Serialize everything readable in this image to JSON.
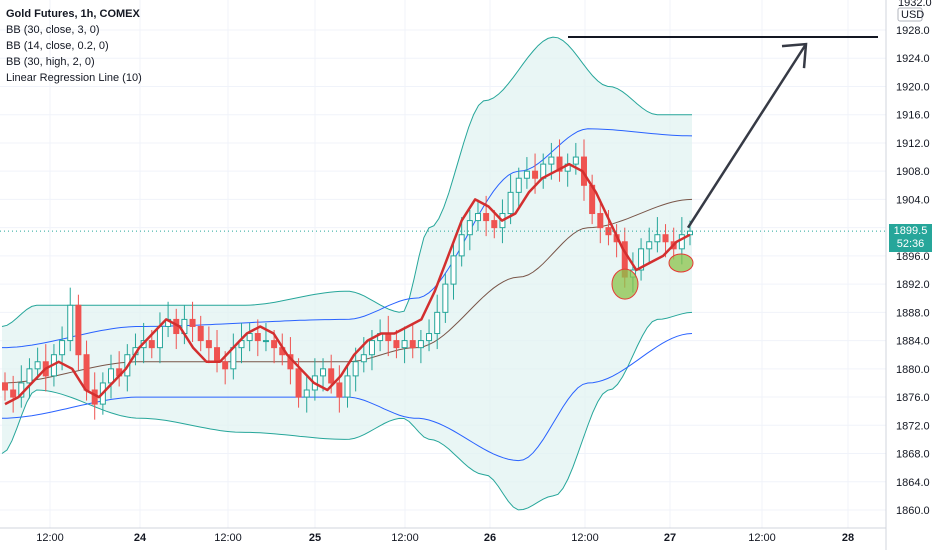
{
  "legend": {
    "title": "Gold Futures, 1h, COMEX",
    "lines": [
      "BB (30, close, 3, 0)",
      "BB (14, close, 0.2, 0)",
      "BB (30, high, 2, 0)",
      "Linear Regression Line (10)"
    ]
  },
  "price_axis": {
    "currency": "USD",
    "top_partial_label": "1932.0",
    "last_price": "1899.5",
    "countdown": "52:36"
  },
  "colors": {
    "up": "#26a69a",
    "down": "#ef5350",
    "regression": "#d32f2f",
    "outer_band": "#26a69a",
    "inner_band": "#2962ff",
    "mid_band": "#795548",
    "fill": "#e0f2f1",
    "highlight": "#8bc34a"
  },
  "chart_data": {
    "type": "candlestick",
    "title": "Gold Futures, 1h, COMEX",
    "ylabel": "USD",
    "ylim": [
      1858,
      1932
    ],
    "y_ticks": [
      1860,
      1864,
      1868,
      1872,
      1876,
      1880,
      1884,
      1888,
      1892,
      1896,
      1900,
      1904,
      1908,
      1912,
      1916,
      1920,
      1924,
      1928
    ],
    "x_ticks": [
      "12:00",
      "24",
      "12:00",
      "25",
      "12:00",
      "26",
      "12:00",
      "27",
      "12:00",
      "28"
    ],
    "x_tick_bold": [
      false,
      true,
      false,
      true,
      false,
      true,
      false,
      true,
      false,
      true
    ],
    "grid": true,
    "candles_close": [
      1877,
      1876,
      1878,
      1880,
      1881,
      1879,
      1882,
      1884,
      1889,
      1882,
      1877,
      1875,
      1878,
      1880,
      1879,
      1882,
      1883,
      1884,
      1883,
      1886,
      1887,
      1885,
      1887,
      1886,
      1884,
      1883,
      1881,
      1880,
      1883,
      1884,
      1885,
      1884,
      1884,
      1883,
      1882,
      1880,
      1876,
      1877,
      1879,
      1880,
      1878,
      1876,
      1879,
      1881,
      1882,
      1884,
      1885,
      1884,
      1883,
      1884,
      1883,
      1884,
      1885,
      1888,
      1892,
      1896,
      1899,
      1901,
      1902,
      1901,
      1900,
      1902,
      1905,
      1907,
      1908,
      1907,
      1909,
      1910,
      1908,
      1909,
      1910,
      1906,
      1902,
      1900,
      1899,
      1898,
      1893,
      1894,
      1897,
      1898,
      1899,
      1898,
      1897,
      1899,
      1899.5
    ],
    "regression_line": [
      1875,
      1876,
      1878,
      1880,
      1881,
      1880,
      1877,
      1876,
      1878,
      1880,
      1883,
      1885,
      1887,
      1886,
      1883,
      1881,
      1881,
      1883,
      1885,
      1886,
      1885,
      1882,
      1880,
      1878,
      1877,
      1879,
      1882,
      1884,
      1885,
      1885,
      1886,
      1887,
      1891,
      1896,
      1901,
      1904,
      1903,
      1901,
      1902,
      1905,
      1907,
      1908,
      1909,
      1908,
      1905,
      1901,
      1897,
      1894,
      1895,
      1896,
      1898,
      1899
    ],
    "bands": {
      "outer_upper_peak": 1927,
      "outer_lower_trough": 1860,
      "inner_upper_end": 1913,
      "inner_lower_end": 1885,
      "basis_end": 1904
    },
    "annotations": [
      {
        "type": "horizontal_line",
        "y": 1927
      },
      {
        "type": "arrow",
        "from_y": 1900,
        "to_y": 1926
      },
      {
        "type": "circle",
        "y": 1892
      },
      {
        "type": "circle",
        "y": 1895
      }
    ]
  }
}
